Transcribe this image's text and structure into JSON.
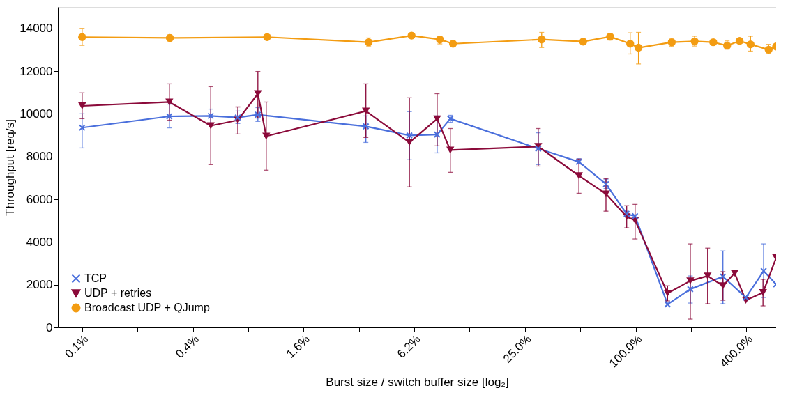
{
  "chart_data": {
    "type": "line",
    "xlabel": "Burst size / switch buffer size [log₂]",
    "ylabel": "Throughput [req/s]",
    "log": "x",
    "grid": false,
    "legend": "bottom left",
    "line_style": "solid",
    "xlim": [
      0.0721,
      580
    ],
    "ylim": [
      0,
      15000
    ],
    "xticks": [
      {
        "value": 0.09765625,
        "label": "0.1%"
      },
      {
        "value": 0.1953125,
        "label": null
      },
      {
        "value": 0.390625,
        "label": "0.4%"
      },
      {
        "value": 0.78125,
        "label": null
      },
      {
        "value": 1.5625,
        "label": "1.6%"
      },
      {
        "value": 3.125,
        "label": null
      },
      {
        "value": 6.25,
        "label": "6.2%"
      },
      {
        "value": 12.5,
        "label": null
      },
      {
        "value": 25,
        "label": "25.0%"
      },
      {
        "value": 50,
        "label": null
      },
      {
        "value": 100,
        "label": "100.0%"
      },
      {
        "value": 200,
        "label": null
      },
      {
        "value": 400,
        "label": "400.0%"
      }
    ],
    "yticks": [
      0,
      2000,
      4000,
      6000,
      8000,
      10000,
      12000,
      14000
    ],
    "series": [
      {
        "name": "TCP",
        "color": "#4a6fdc",
        "marker": "cross",
        "x": [
          0.0977,
          0.291,
          0.489,
          0.686,
          0.882,
          3.41,
          5.88,
          8.32,
          9.81,
          29.5,
          49.1,
          68.9,
          89.3,
          99.2,
          149,
          198,
          298,
          397,
          496,
          580
        ],
        "values": [
          9350,
          9880,
          9900,
          9830,
          9960,
          9410,
          8990,
          9030,
          9770,
          8370,
          7750,
          6710,
          5310,
          5210,
          1080,
          1790,
          2380,
          1400,
          2640,
          2020
        ],
        "errors": [
          [
            8400,
            10000
          ],
          [
            9340,
            10450
          ],
          [
            9540,
            10220
          ],
          [
            9540,
            10130
          ],
          [
            9640,
            10290
          ],
          [
            8660,
            9900
          ],
          [
            7850,
            10100
          ],
          [
            8170,
            9900
          ],
          [
            9600,
            9930
          ],
          [
            7620,
            9110
          ],
          [
            7650,
            7900
          ],
          [
            6500,
            6940
          ],
          [
            5180,
            5440
          ],
          null,
          null,
          [
            1140,
            2410
          ],
          [
            1110,
            3580
          ],
          null,
          [
            1400,
            3910
          ],
          null
        ]
      },
      {
        "name": "UDP + retries",
        "color": "#8b0a3a",
        "marker": "triangle-down",
        "x": [
          0.0977,
          0.291,
          0.489,
          0.686,
          0.882,
          0.979,
          3.41,
          5.88,
          8.32,
          9.81,
          29.5,
          49.1,
          68.9,
          89.3,
          99.2,
          149,
          198,
          246,
          298,
          345,
          397,
          492,
          580
        ],
        "values": [
          10370,
          10550,
          9440,
          9700,
          10940,
          8950,
          10130,
          8660,
          9760,
          8300,
          8470,
          7100,
          6250,
          5180,
          5010,
          1600,
          2180,
          2410,
          1950,
          2540,
          1270,
          1630,
          3260
        ],
        "errors": [
          [
            9770,
            10980
          ],
          [
            9700,
            11400
          ],
          [
            7620,
            11270
          ],
          [
            9050,
            10320
          ],
          [
            9800,
            11980
          ],
          [
            7360,
            10550
          ],
          [
            8890,
            11400
          ],
          [
            6580,
            10750
          ],
          [
            8500,
            10940
          ],
          [
            7260,
            9310
          ],
          [
            7550,
            9310
          ],
          [
            6280,
            7880
          ],
          [
            5440,
            6970
          ],
          [
            4660,
            5700
          ],
          [
            4140,
            5760
          ],
          [
            1240,
            1950
          ],
          [
            390,
            3910
          ],
          [
            1110,
            3710
          ],
          [
            1270,
            2610
          ],
          null,
          null,
          [
            1010,
            2250
          ],
          null
        ]
      },
      {
        "name": "Broadcast UDP + QJump",
        "color": "#f39c12",
        "marker": "circle",
        "x": [
          0.0977,
          0.293,
          0.99,
          3.53,
          6.04,
          8.61,
          10.15,
          30.8,
          51.8,
          72.6,
          93.3,
          103.5,
          157,
          209,
          264,
          314,
          367,
          421,
          528,
          580
        ],
        "values": [
          13590,
          13550,
          13590,
          13350,
          13660,
          13480,
          13280,
          13480,
          13380,
          13610,
          13280,
          13090,
          13350,
          13390,
          13350,
          13190,
          13410,
          13250,
          13000,
          13150
        ],
        "errors": [
          [
            13200,
            14000
          ],
          [
            13400,
            13700
          ],
          null,
          [
            13170,
            13550
          ],
          null,
          [
            13270,
            13580
          ],
          null,
          [
            13100,
            13810
          ],
          null,
          [
            13450,
            13720
          ],
          [
            12800,
            13790
          ],
          [
            12330,
            13810
          ],
          [
            13150,
            13500
          ],
          [
            13170,
            13630
          ],
          null,
          [
            13020,
            13410
          ],
          null,
          [
            12930,
            13630
          ],
          [
            12840,
            13250
          ],
          null
        ]
      }
    ]
  }
}
